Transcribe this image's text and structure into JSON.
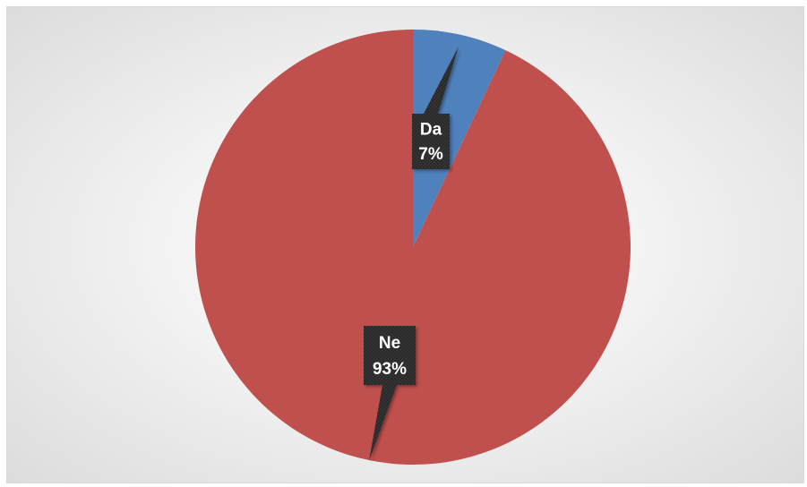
{
  "chart_data": {
    "type": "pie",
    "categories": [
      "Da",
      "Ne"
    ],
    "values": [
      7,
      93
    ],
    "data_labels": [
      {
        "category": "Da",
        "percent": "7%"
      },
      {
        "category": "Ne",
        "percent": "93%"
      }
    ],
    "colors": [
      "#4f81bd",
      "#c0504d"
    ],
    "label_box_color": "#2b2b2b",
    "title": "",
    "legend": "none"
  }
}
